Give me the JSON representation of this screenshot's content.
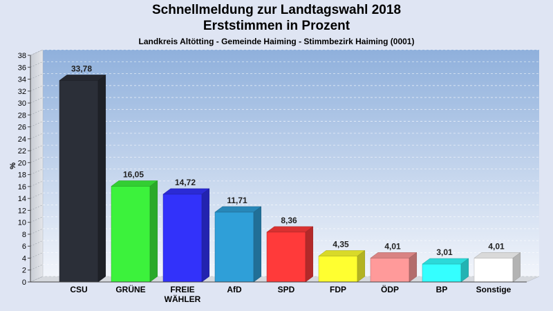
{
  "chart_data": {
    "type": "bar",
    "title": "Schnellmeldung zur Landtagswahl 2018",
    "subtitle": "Erststimmen in Prozent",
    "caption": "Landkreis Altötting - Gemeinde Haiming - Stimmbezirk Haiming (0001)",
    "ylabel": "%",
    "ylim": [
      0,
      38
    ],
    "ytick_step": 2,
    "grid": true,
    "categories": [
      "CSU",
      "GRÜNE",
      "FREIE WÄHLER",
      "AfD",
      "SPD",
      "FDP",
      "ÖDP",
      "BP",
      "Sonstige"
    ],
    "category_lines": [
      [
        "CSU"
      ],
      [
        "GRÜNE"
      ],
      [
        "FREIE",
        "WÄHLER"
      ],
      [
        "AfD"
      ],
      [
        "SPD"
      ],
      [
        "FDP"
      ],
      [
        "ÖDP"
      ],
      [
        "BP"
      ],
      [
        "Sonstige"
      ]
    ],
    "values": [
      33.78,
      16.05,
      14.72,
      11.71,
      8.36,
      4.35,
      4.01,
      3.01,
      4.01
    ],
    "value_labels": [
      "33,78",
      "16,05",
      "14,72",
      "11,71",
      "8,36",
      "4,35",
      "4,01",
      "3,01",
      "4,01"
    ],
    "colors": [
      "#2b2f38",
      "#3cf23c",
      "#3232fa",
      "#2f9fd8",
      "#ff3a3a",
      "#ffff30",
      "#ff9a9a",
      "#34ffff",
      "#ffffff"
    ]
  }
}
